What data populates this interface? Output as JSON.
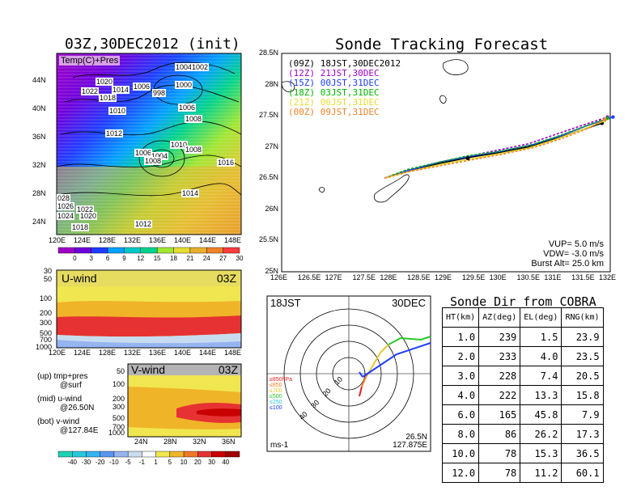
{
  "left": {
    "title": "03Z,30DEC2012 (init)",
    "map_label": "Temp(C)+Pres",
    "lat_labels": [
      "44N",
      "40N",
      "36N",
      "32N",
      "28N",
      "24N"
    ],
    "lon_labels": [
      "120E",
      "124E",
      "128E",
      "132E",
      "136E",
      "140E",
      "144E",
      "148E"
    ],
    "pressure_labels": [
      {
        "text": "1020"
      },
      {
        "text": "1022"
      },
      {
        "text": "1014"
      },
      {
        "text": "1006"
      },
      {
        "text": "1004"
      },
      {
        "text": "1002"
      },
      {
        "text": "1018"
      },
      {
        "text": "998"
      },
      {
        "text": "1000"
      },
      {
        "text": "1010"
      },
      {
        "text": "1006"
      },
      {
        "text": "1008"
      },
      {
        "text": "1012"
      },
      {
        "text": "1006"
      },
      {
        "text": "1004"
      },
      {
        "text": "1008"
      },
      {
        "text": "1010"
      },
      {
        "text": "1008"
      },
      {
        "text": "1016"
      },
      {
        "text": "1014"
      },
      {
        "text": "028"
      },
      {
        "text": "1026"
      },
      {
        "text": "1022"
      },
      {
        "text": "1024"
      },
      {
        "text": "1020"
      },
      {
        "text": "1018"
      },
      {
        "text": "1012"
      }
    ],
    "temp_scale": {
      "ticks": [
        "0",
        "3",
        "6",
        "9",
        "12",
        "15",
        "18",
        "21",
        "24",
        "27",
        "30"
      ],
      "colors": [
        "#a000c8",
        "#6e00dc",
        "#1e3cff",
        "#00a0ff",
        "#00c8c8",
        "#00d28c",
        "#a0e632",
        "#e6dc32",
        "#e6af2d",
        "#f08228",
        "#fa3c3c"
      ]
    },
    "uwind": {
      "label": "U-wind",
      "time": "03Z",
      "p_labels": [
        "30",
        "50",
        "100",
        "200",
        "300",
        "500",
        "700",
        "1000"
      ],
      "lon_labels": [
        "120E",
        "124E",
        "128E",
        "132E",
        "136E",
        "140E",
        "144E",
        "148E"
      ]
    },
    "vwind": {
      "label": "V-wind",
      "time": "03Z",
      "p_labels": [
        "50",
        "100",
        "200",
        "300",
        "500",
        "700",
        "1000"
      ],
      "lat_labels": [
        "24N",
        "28N",
        "32N",
        "36N"
      ]
    },
    "notes": [
      {
        "line1": "(up) tmp+pres",
        "line2": "@surf"
      },
      {
        "line1": "(mid) u-wind",
        "line2": "@26.50N"
      },
      {
        "line1": "(bot) v-wind",
        "line2": "@127.84E"
      }
    ],
    "wind_scale": {
      "ticks": [
        "-40",
        "-30",
        "-20",
        "-10",
        "-5",
        "-1",
        "1",
        "5",
        "10",
        "20",
        "30",
        "40"
      ],
      "colors": [
        "#1ed2b4",
        "#28c8dc",
        "#32b4f0",
        "#5a96f0",
        "#96b4f0",
        "#c8dcf0",
        "#fafafa",
        "#f0e650",
        "#f0b428",
        "#f07828",
        "#e63232",
        "#c80000",
        "#a00000"
      ]
    }
  },
  "track": {
    "title": "Sonde Tracking Forecast",
    "lat_labels": [
      "28.5N",
      "28N",
      "27.5N",
      "27N",
      "26.5N",
      "26N",
      "25.5N",
      "25N"
    ],
    "lon_labels": [
      "126E",
      "126.5E",
      "127E",
      "127.5E",
      "128E",
      "128.5E",
      "129E",
      "129.5E",
      "130E",
      "130.5E",
      "131E",
      "131.5E",
      "132E"
    ],
    "legend": [
      {
        "text": "(09Z)  18JST,30DEC2012",
        "color": "#000000"
      },
      {
        "text": "(12Z)  21JST,30DEC",
        "color": "#a000c8"
      },
      {
        "text": "(15Z)  00JST,31DEC",
        "color": "#1e3cff"
      },
      {
        "text": "(18Z)  03JST,31DEC",
        "color": "#00b400"
      },
      {
        "text": "(21Z)  06JST,31DEC",
        "color": "#e6dc32"
      },
      {
        "text": "(00Z)  09JST,31DEC",
        "color": "#f08228"
      }
    ],
    "params": [
      "VUP= 5.0 m/s",
      "VDW= -3.0 m/s",
      "Burst Alt= 25.0 km"
    ],
    "series": [
      {
        "name": "(09Z)",
        "color": "#000000",
        "x": [
          127.88,
          128.3,
          128.9,
          129.4,
          129.9,
          130.5,
          131.0,
          131.5,
          131.85
        ],
        "y": [
          26.5,
          26.62,
          26.74,
          26.83,
          26.9,
          27.0,
          27.13,
          27.28,
          27.38
        ]
      },
      {
        "name": "(12Z)",
        "color": "#a000c8",
        "x": [
          127.88,
          128.3,
          128.9,
          129.4,
          129.9,
          130.5,
          131.0,
          131.5,
          131.95
        ],
        "y": [
          26.5,
          26.64,
          26.76,
          26.85,
          26.94,
          27.05,
          27.2,
          27.35,
          27.48
        ]
      },
      {
        "name": "(15Z)",
        "color": "#1e3cff",
        "x": [
          127.88,
          128.3,
          128.9,
          129.5,
          130.0,
          130.6,
          131.1,
          131.6,
          132.05
        ],
        "y": [
          26.5,
          26.62,
          26.76,
          26.86,
          26.93,
          27.04,
          27.18,
          27.35,
          27.48
        ]
      },
      {
        "name": "(18Z)",
        "color": "#00b400",
        "x": [
          127.88,
          128.3,
          128.9,
          129.4,
          129.9,
          130.5,
          131.0,
          131.5,
          131.95
        ],
        "y": [
          26.5,
          26.64,
          26.76,
          26.86,
          26.92,
          27.02,
          27.16,
          27.32,
          27.46
        ]
      },
      {
        "name": "(21Z)",
        "color": "#e6dc32",
        "x": [
          127.88,
          128.3,
          128.9,
          129.4,
          129.9,
          130.5,
          131.0,
          131.5,
          131.9
        ],
        "y": [
          26.5,
          26.6,
          26.72,
          26.8,
          26.88,
          26.98,
          27.12,
          27.28,
          27.42
        ]
      },
      {
        "name": "(00Z)",
        "color": "#f08228",
        "x": [
          127.88,
          128.3,
          128.9,
          129.45,
          130.0,
          130.6,
          131.1,
          131.6,
          131.9
        ],
        "y": [
          26.5,
          26.6,
          26.7,
          26.79,
          26.88,
          26.99,
          27.13,
          27.3,
          27.44
        ]
      }
    ]
  },
  "polar": {
    "time": "18JST",
    "date": "30DEC",
    "legend": [
      {
        "text": "≥850hPa",
        "color": "#e61e1e"
      },
      {
        "text": "≤850",
        "color": "#f08228"
      },
      {
        "text": "≤700",
        "color": "#e6c832"
      },
      {
        "text": "≤500",
        "color": "#28c828"
      },
      {
        "text": "≤250",
        "color": "#28c8dc"
      },
      {
        "text": "≤100",
        "color": "#1e3cff"
      }
    ],
    "ring_labels": [
      "10",
      "20",
      "30",
      "40"
    ],
    "unit": "ms-1",
    "loc1": "26.5N",
    "loc2": "127.875E"
  },
  "sonde_table": {
    "title": "Sonde Dir from COBRA",
    "headers": [
      "HT(km)",
      "AZ(deg)",
      "EL(deg)",
      "RNG(km)"
    ],
    "rows": [
      [
        "1.0",
        "239",
        "1.5",
        "23.9"
      ],
      [
        "2.0",
        "233",
        "4.0",
        "23.5"
      ],
      [
        "3.0",
        "228",
        "7.4",
        "20.5"
      ],
      [
        "4.0",
        "222",
        "13.3",
        "15.8"
      ],
      [
        "6.0",
        "165",
        "45.8",
        "7.9"
      ],
      [
        "8.0",
        "86",
        "26.2",
        "17.3"
      ],
      [
        "10.0",
        "78",
        "15.3",
        "36.5"
      ],
      [
        "12.0",
        "78",
        "11.2",
        "60.1"
      ]
    ]
  },
  "chart_data": [
    {
      "type": "line",
      "title": "Sonde Tracking Forecast",
      "xlim": [
        126,
        132
      ],
      "ylim": [
        25,
        28.5
      ],
      "series": [
        {
          "name": "(09Z)",
          "x": [
            127.88,
            128.3,
            128.9,
            129.4,
            129.9,
            130.5,
            131.0,
            131.5,
            131.85
          ],
          "y": [
            26.5,
            26.62,
            26.74,
            26.83,
            26.9,
            27.0,
            27.13,
            27.28,
            27.38
          ]
        },
        {
          "name": "(12Z)",
          "x": [
            127.88,
            128.3,
            128.9,
            129.4,
            129.9,
            130.5,
            131.0,
            131.5,
            131.95
          ],
          "y": [
            26.5,
            26.64,
            26.76,
            26.85,
            26.94,
            27.05,
            27.2,
            27.35,
            27.48
          ]
        },
        {
          "name": "(15Z)",
          "x": [
            127.88,
            128.3,
            128.9,
            129.5,
            130.0,
            130.6,
            131.1,
            131.6,
            132.05
          ],
          "y": [
            26.5,
            26.62,
            26.76,
            26.86,
            26.93,
            27.04,
            27.18,
            27.35,
            27.48
          ]
        },
        {
          "name": "(18Z)",
          "x": [
            127.88,
            128.3,
            128.9,
            129.4,
            129.9,
            130.5,
            131.0,
            131.5,
            131.95
          ],
          "y": [
            26.5,
            26.64,
            26.76,
            26.86,
            26.92,
            27.02,
            27.16,
            27.32,
            27.46
          ]
        },
        {
          "name": "(21Z)",
          "x": [
            127.88,
            128.3,
            128.9,
            129.4,
            129.9,
            130.5,
            131.0,
            131.5,
            131.9
          ],
          "y": [
            26.5,
            26.6,
            26.72,
            26.8,
            26.88,
            26.98,
            27.12,
            27.28,
            27.42
          ]
        },
        {
          "name": "(00Z)",
          "x": [
            127.88,
            128.3,
            128.9,
            129.45,
            130.0,
            130.6,
            131.1,
            131.6,
            131.9
          ],
          "y": [
            26.5,
            26.6,
            26.7,
            26.79,
            26.88,
            26.99,
            27.13,
            27.3,
            27.44
          ]
        }
      ]
    },
    {
      "type": "table",
      "title": "Sonde Dir from COBRA",
      "columns": [
        "HT(km)",
        "AZ(deg)",
        "EL(deg)",
        "RNG(km)"
      ],
      "rows": [
        [
          1.0,
          239,
          1.5,
          23.9
        ],
        [
          2.0,
          233,
          4.0,
          23.5
        ],
        [
          3.0,
          228,
          7.4,
          20.5
        ],
        [
          4.0,
          222,
          13.3,
          15.8
        ],
        [
          6.0,
          165,
          45.8,
          7.9
        ],
        [
          8.0,
          86,
          26.2,
          17.3
        ],
        [
          10.0,
          78,
          15.3,
          36.5
        ],
        [
          12.0,
          78,
          11.2,
          60.1
        ]
      ]
    }
  ]
}
